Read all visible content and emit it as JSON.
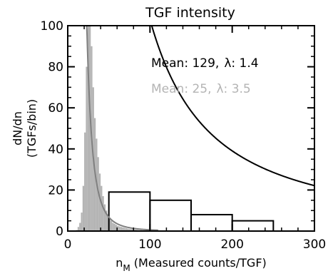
{
  "chart_data": {
    "type": "bar",
    "title": "TGF intensity",
    "xlabel_main": "n",
    "xlabel_sub": "M",
    "xlabel_rest": " (Measured counts/TGF)",
    "ylabel_line1": "dN/dn",
    "ylabel_line2": "(TGFs/bin)",
    "xlim": [
      0,
      300
    ],
    "ylim": [
      0,
      100
    ],
    "x_ticks": [
      0,
      100,
      200,
      300
    ],
    "y_ticks": [
      0,
      20,
      40,
      60,
      80,
      100
    ],
    "grid": false,
    "series": [
      {
        "name": "Mean: 129, λ: 1.4",
        "label_mean": "Mean: 129,",
        "label_lambda": "λ: 1.4",
        "color": "#000000",
        "style": "step-outline",
        "bin_edges": [
          50,
          100,
          150,
          200,
          250
        ],
        "values": [
          19,
          15,
          8,
          5
        ],
        "fit_curve": {
          "x_start": 30,
          "x_end": 300,
          "k": 65000,
          "lambda": 1.4
        }
      },
      {
        "name": "Mean: 25, λ: 3.5",
        "label_mean": "Mean: 25,",
        "label_lambda": "λ: 3.5",
        "color": "#b4b4b4",
        "style": "filled-histogram",
        "bin_width": 2,
        "bin_starts": [
          10,
          12,
          14,
          16,
          18,
          20,
          22,
          24,
          26,
          28,
          30,
          32,
          34,
          36,
          38,
          40,
          42,
          44,
          46,
          48,
          50,
          52,
          54,
          56,
          58,
          60,
          62,
          64,
          66,
          68,
          70,
          72,
          74,
          76,
          78,
          80,
          82,
          84,
          86,
          88,
          90,
          92,
          94,
          96,
          98,
          100,
          102,
          104,
          106,
          108
        ],
        "values": [
          0.5,
          2,
          4,
          9,
          22,
          48,
          80,
          100,
          100,
          90,
          70,
          55,
          45,
          36,
          28,
          22,
          17,
          13,
          10,
          8,
          6,
          5,
          4,
          3.5,
          3,
          2.5,
          2.2,
          2,
          1.8,
          1.6,
          1.4,
          1.2,
          1,
          1,
          1,
          0.8,
          0.7,
          0.6,
          0.5,
          0.5,
          0.4,
          0.4,
          0.3,
          0.3,
          0.3,
          0.3,
          0.2,
          0.2,
          0.2,
          0.2
        ],
        "fit_curve": {
          "x_start": 18,
          "x_end": 110,
          "k": 6000000.0,
          "lambda": 3.5
        }
      }
    ]
  }
}
